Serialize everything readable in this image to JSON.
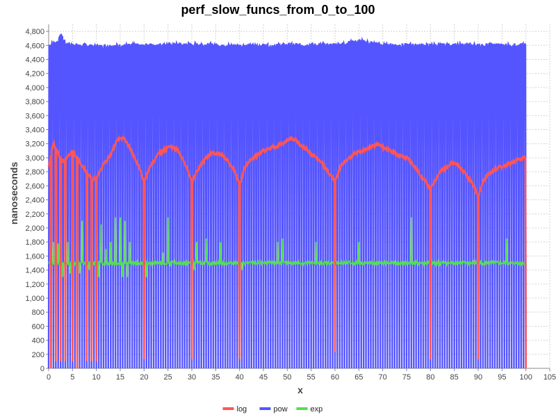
{
  "chart_data": {
    "type": "line",
    "title": "perf_slow_funcs_from_0_to_100",
    "xlabel": "x",
    "ylabel": "nanoseconds",
    "xlim": [
      0,
      105
    ],
    "ylim": [
      0,
      4900
    ],
    "xticks": [
      0,
      5,
      10,
      15,
      20,
      25,
      30,
      35,
      40,
      45,
      50,
      55,
      60,
      65,
      70,
      75,
      80,
      85,
      90,
      95,
      100,
      105
    ],
    "yticks": [
      0,
      200,
      400,
      600,
      800,
      1000,
      1200,
      1400,
      1600,
      1800,
      2000,
      2200,
      2400,
      2600,
      2800,
      3000,
      3200,
      3400,
      3600,
      3800,
      4000,
      4200,
      4400,
      4600,
      4800
    ],
    "ytick_labels": [
      "0",
      "200",
      "400",
      "600",
      "800",
      "1,000",
      "1,200",
      "1,400",
      "1,600",
      "1,800",
      "2,000",
      "2,200",
      "2,400",
      "2,600",
      "2,800",
      "3,000",
      "3,200",
      "3,400",
      "3,600",
      "3,800",
      "4,000",
      "4,200",
      "4,400",
      "4,600",
      "4,800"
    ],
    "grid": true,
    "legend_position": "bottom-center",
    "series": [
      {
        "name": "log",
        "color": "#ff5555",
        "baseline": [
          [
            0,
            2900
          ],
          [
            1,
            3200
          ],
          [
            2,
            3050
          ],
          [
            3,
            2950
          ],
          [
            4,
            3000
          ],
          [
            5,
            3100
          ],
          [
            6,
            3000
          ],
          [
            7,
            2900
          ],
          [
            8,
            2800
          ],
          [
            9,
            2700
          ],
          [
            10,
            2700
          ],
          [
            11,
            2850
          ],
          [
            12,
            2950
          ],
          [
            13,
            3050
          ],
          [
            14,
            3200
          ],
          [
            15,
            3300
          ],
          [
            16,
            3250
          ],
          [
            17,
            3150
          ],
          [
            18,
            3000
          ],
          [
            19,
            2850
          ],
          [
            20,
            2650
          ],
          [
            21,
            2850
          ],
          [
            22,
            2950
          ],
          [
            23,
            3050
          ],
          [
            24,
            3100
          ],
          [
            25,
            3150
          ],
          [
            26,
            3150
          ],
          [
            27,
            3100
          ],
          [
            28,
            3000
          ],
          [
            29,
            2850
          ],
          [
            30,
            2650
          ],
          [
            31,
            2800
          ],
          [
            32,
            2900
          ],
          [
            33,
            3000
          ],
          [
            34,
            3050
          ],
          [
            35,
            3070
          ],
          [
            36,
            3050
          ],
          [
            37,
            3000
          ],
          [
            38,
            2900
          ],
          [
            39,
            2800
          ],
          [
            40,
            2600
          ],
          [
            41,
            2850
          ],
          [
            42,
            2950
          ],
          [
            43,
            3000
          ],
          [
            44,
            3050
          ],
          [
            45,
            3100
          ],
          [
            46,
            3120
          ],
          [
            47,
            3150
          ],
          [
            48,
            3180
          ],
          [
            49,
            3200
          ],
          [
            50,
            3250
          ],
          [
            51,
            3270
          ],
          [
            52,
            3220
          ],
          [
            53,
            3170
          ],
          [
            54,
            3120
          ],
          [
            55,
            3050
          ],
          [
            56,
            3000
          ],
          [
            57,
            2950
          ],
          [
            58,
            2850
          ],
          [
            59,
            2750
          ],
          [
            60,
            2650
          ],
          [
            61,
            2850
          ],
          [
            62,
            2950
          ],
          [
            63,
            3000
          ],
          [
            64,
            3050
          ],
          [
            65,
            3080
          ],
          [
            66,
            3100
          ],
          [
            67,
            3150
          ],
          [
            68,
            3170
          ],
          [
            69,
            3200
          ],
          [
            70,
            3150
          ],
          [
            71,
            3120
          ],
          [
            72,
            3080
          ],
          [
            73,
            3050
          ],
          [
            74,
            3020
          ],
          [
            75,
            3000
          ],
          [
            76,
            2950
          ],
          [
            77,
            2850
          ],
          [
            78,
            2750
          ],
          [
            79,
            2650
          ],
          [
            80,
            2550
          ],
          [
            81,
            2700
          ],
          [
            82,
            2800
          ],
          [
            83,
            2850
          ],
          [
            84,
            2900
          ],
          [
            85,
            2920
          ],
          [
            86,
            2880
          ],
          [
            87,
            2800
          ],
          [
            88,
            2700
          ],
          [
            89,
            2600
          ],
          [
            90,
            2450
          ],
          [
            91,
            2650
          ],
          [
            92,
            2750
          ],
          [
            93,
            2800
          ],
          [
            94,
            2850
          ],
          [
            95,
            2880
          ],
          [
            96,
            2900
          ],
          [
            97,
            2930
          ],
          [
            98,
            2950
          ],
          [
            99,
            2980
          ],
          [
            100,
            3000
          ]
        ],
        "dips": [
          [
            0.5,
            0
          ],
          [
            1.5,
            100
          ],
          [
            2.5,
            100
          ],
          [
            3.5,
            100
          ],
          [
            5,
            100
          ],
          [
            6,
            0
          ],
          [
            8,
            100
          ],
          [
            9,
            100
          ],
          [
            10,
            100
          ],
          [
            20,
            130
          ],
          [
            30,
            130
          ],
          [
            40,
            130
          ],
          [
            60,
            230
          ],
          [
            80,
            130
          ],
          [
            90,
            130
          ],
          [
            100,
            0
          ]
        ]
      },
      {
        "name": "pow",
        "color": "#5555ff",
        "baseline": [
          [
            0,
            4600
          ],
          [
            2,
            4650
          ],
          [
            2.7,
            4750
          ],
          [
            3.5,
            4620
          ],
          [
            10,
            4580
          ],
          [
            20,
            4600
          ],
          [
            30,
            4610
          ],
          [
            40,
            4590
          ],
          [
            50,
            4600
          ],
          [
            60,
            4600
          ],
          [
            65,
            4660
          ],
          [
            70,
            4600
          ],
          [
            80,
            4600
          ],
          [
            90,
            4600
          ],
          [
            100,
            4600
          ]
        ],
        "dip_step": 0.5,
        "dip_value": 0
      },
      {
        "name": "exp",
        "color": "#55dd55",
        "baseline": [
          [
            0,
            1500
          ],
          [
            100,
            1500
          ]
        ],
        "spikes": [
          [
            1,
            1800
          ],
          [
            2,
            1780
          ],
          [
            3,
            1750
          ],
          [
            4,
            1800
          ],
          [
            5,
            1650
          ],
          [
            6,
            2150
          ],
          [
            7,
            2100
          ],
          [
            8,
            2150
          ],
          [
            9,
            2050
          ],
          [
            10,
            2150
          ],
          [
            11,
            2050
          ],
          [
            12,
            1700
          ],
          [
            13,
            1800
          ],
          [
            14,
            2150
          ],
          [
            15,
            2150
          ],
          [
            16,
            2100
          ],
          [
            17,
            1800
          ],
          [
            20,
            1800
          ],
          [
            24,
            1650
          ],
          [
            25,
            2150
          ],
          [
            30,
            1850
          ],
          [
            31,
            1800
          ],
          [
            33,
            1850
          ],
          [
            36,
            1800
          ],
          [
            40,
            1800
          ],
          [
            48,
            1800
          ],
          [
            49,
            1850
          ],
          [
            56,
            1800
          ],
          [
            60,
            1800
          ],
          [
            65,
            1800
          ],
          [
            76,
            2150
          ],
          [
            80,
            1850
          ],
          [
            96,
            1850
          ]
        ],
        "lows": [
          [
            1.5,
            1300
          ],
          [
            2.5,
            1350
          ],
          [
            3,
            1300
          ],
          [
            4.5,
            1350
          ],
          [
            6.5,
            1350
          ],
          [
            8.5,
            1400
          ],
          [
            10.5,
            1300
          ],
          [
            15.5,
            1300
          ],
          [
            16.5,
            1300
          ],
          [
            20.5,
            1300
          ],
          [
            30.5,
            1400
          ],
          [
            40.5,
            1400
          ]
        ]
      }
    ]
  }
}
